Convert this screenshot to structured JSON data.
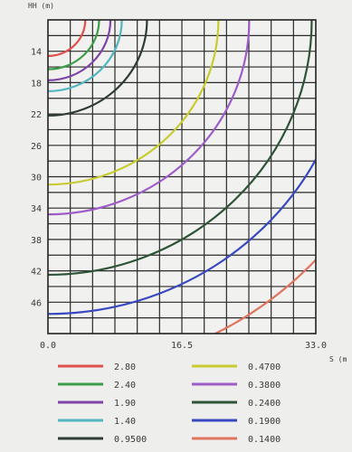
{
  "chart_data": {
    "type": "contour",
    "xlabel": "S (m",
    "ylabel": "HH (m)",
    "xlim": [
      0,
      33
    ],
    "ylim": [
      10,
      50
    ],
    "x_ticks": [
      "0.0",
      "16.5",
      "33.0"
    ],
    "y_ticks": [
      "14",
      "18",
      "22",
      "26",
      "30",
      "34",
      "38",
      "42",
      "46"
    ],
    "y_tick_values": [
      14,
      18,
      22,
      26,
      30,
      34,
      38,
      42,
      46
    ],
    "grid": true,
    "legend_position": "bottom",
    "levels": [
      {
        "label": "2.80",
        "color": "#e0504c",
        "r": 4.6
      },
      {
        "label": "2.40",
        "color": "#3a9e48",
        "r": 6.3
      },
      {
        "label": "1.90",
        "color": "#7e44a8",
        "r": 7.7
      },
      {
        "label": "1.40",
        "color": "#52b5c0",
        "r": 9.1
      },
      {
        "label": "0.9500",
        "color": "#2e3c35",
        "r": 12.2
      },
      {
        "label": "0.4700",
        "color": "#c8cc30",
        "r": 21.0
      },
      {
        "label": "0.3800",
        "color": "#9e5cc8",
        "r": 24.8
      },
      {
        "label": "0.2400",
        "color": "#2e5438",
        "r": 32.5
      },
      {
        "label": "0.1900",
        "color": "#3848c0",
        "r": 37.5
      },
      {
        "label": "0.1400",
        "color": "#e0745e",
        "r": 45.0
      }
    ]
  }
}
